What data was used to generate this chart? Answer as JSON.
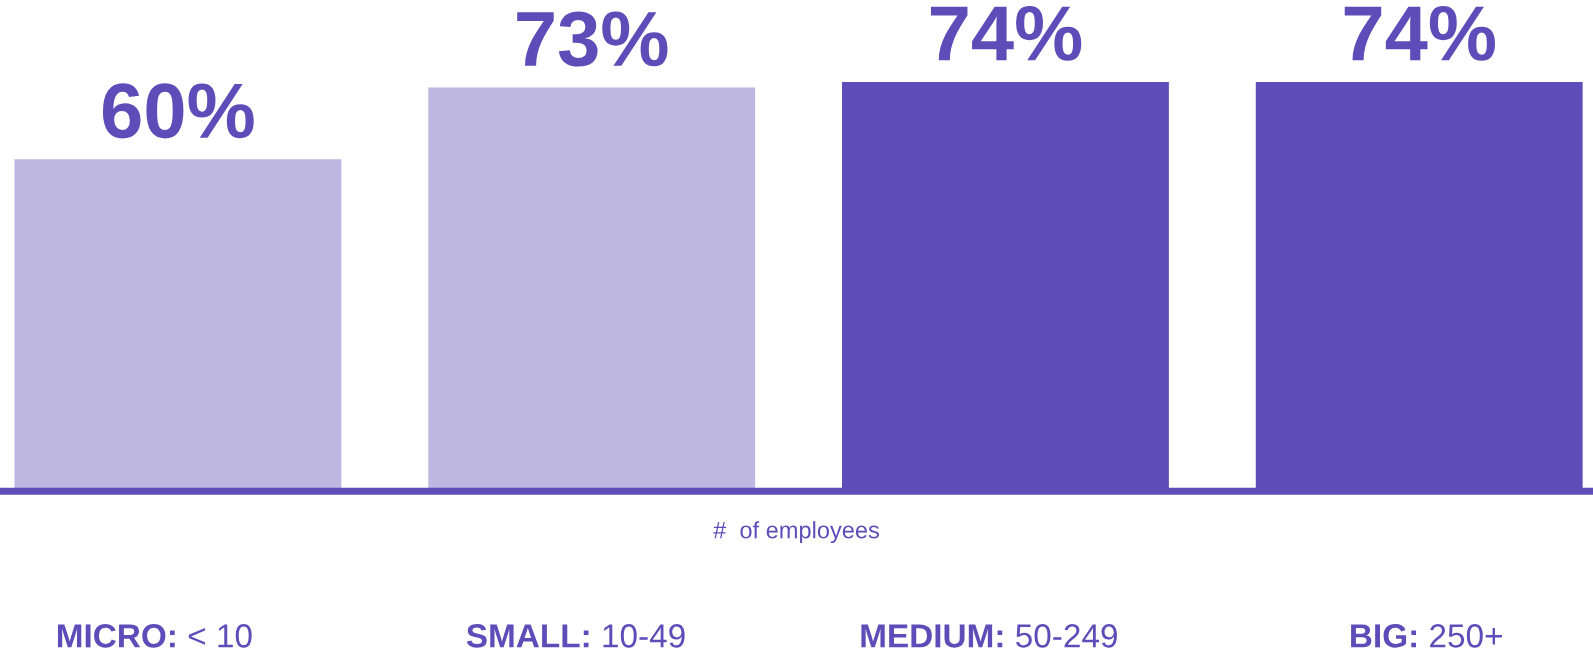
{
  "chart_data": {
    "type": "bar",
    "xlabel": "#  of employees",
    "categories": [
      "MICRO: < 10",
      "SMALL: 10-49",
      "MEDIUM: 50-249",
      "BIG: 250+"
    ],
    "values": [
      60,
      73,
      74,
      74
    ],
    "colors": [
      "#bdb7e2",
      "#bdb7e2",
      "#5e4db8",
      "#5e4db8"
    ],
    "value_labels": [
      "60%",
      "73%",
      "74%",
      "74%"
    ],
    "tick_labels": "x",
    "grid": false
  }
}
